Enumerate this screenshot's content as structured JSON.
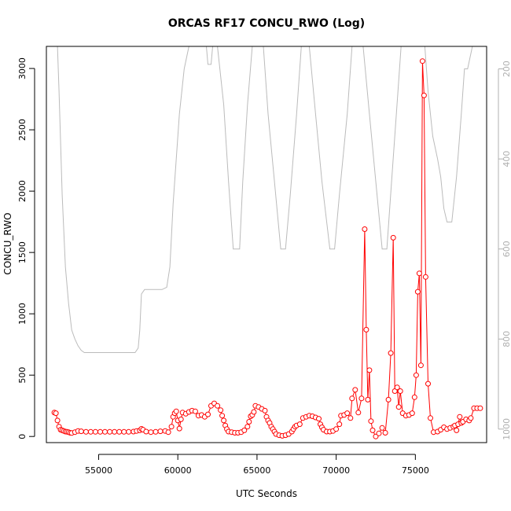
{
  "chart_data": {
    "type": "scatter",
    "title": "ORCAS RF17 CONCU_RWO (Log)",
    "xlabel": "UTC Seconds",
    "ylabel": "CONCU_RWO",
    "xlim": [
      51700,
      79500
    ],
    "ylim": [
      -50,
      3180
    ],
    "x_ticks": [
      55000,
      60000,
      65000,
      70000,
      75000
    ],
    "y_ticks": [
      0,
      500,
      1000,
      1500,
      2000,
      2500,
      3000
    ],
    "right_axis": {
      "ticks": [
        200,
        400,
        600,
        800,
        1000
      ],
      "range": [
        150,
        1030
      ],
      "inverted": true,
      "color": "#b0b0b0"
    },
    "series": [
      {
        "color": "#ff0000",
        "marker": "circle",
        "line": true,
        "points": [
          [
            52200,
            195
          ],
          [
            52300,
            190
          ],
          [
            52400,
            130
          ],
          [
            52500,
            80
          ],
          [
            52600,
            55
          ],
          [
            52700,
            50
          ],
          [
            52800,
            45
          ],
          [
            52900,
            40
          ],
          [
            53000,
            38
          ],
          [
            53100,
            35
          ],
          [
            53200,
            30
          ],
          [
            53300,
            28
          ],
          [
            53500,
            35
          ],
          [
            53700,
            45
          ],
          [
            53900,
            42
          ],
          [
            54200,
            38
          ],
          [
            54500,
            38
          ],
          [
            54800,
            38
          ],
          [
            55100,
            38
          ],
          [
            55400,
            38
          ],
          [
            55700,
            38
          ],
          [
            56000,
            38
          ],
          [
            56300,
            38
          ],
          [
            56600,
            38
          ],
          [
            56900,
            38
          ],
          [
            57200,
            40
          ],
          [
            57400,
            45
          ],
          [
            57600,
            50
          ],
          [
            57700,
            62
          ],
          [
            57800,
            55
          ],
          [
            58000,
            40
          ],
          [
            58300,
            35
          ],
          [
            58600,
            38
          ],
          [
            58900,
            42
          ],
          [
            59200,
            45
          ],
          [
            59400,
            35
          ],
          [
            59600,
            80
          ],
          [
            59700,
            160
          ],
          [
            59800,
            190
          ],
          [
            59900,
            205
          ],
          [
            60000,
            130
          ],
          [
            60100,
            65
          ],
          [
            60200,
            140
          ],
          [
            60300,
            195
          ],
          [
            60500,
            185
          ],
          [
            60700,
            200
          ],
          [
            60900,
            210
          ],
          [
            61100,
            205
          ],
          [
            61300,
            170
          ],
          [
            61500,
            175
          ],
          [
            61700,
            160
          ],
          [
            61900,
            180
          ],
          [
            62100,
            250
          ],
          [
            62300,
            270
          ],
          [
            62500,
            250
          ],
          [
            62700,
            215
          ],
          [
            62800,
            170
          ],
          [
            62900,
            130
          ],
          [
            63000,
            90
          ],
          [
            63100,
            60
          ],
          [
            63200,
            40
          ],
          [
            63400,
            35
          ],
          [
            63600,
            30
          ],
          [
            63800,
            30
          ],
          [
            64000,
            35
          ],
          [
            64200,
            50
          ],
          [
            64400,
            80
          ],
          [
            64500,
            120
          ],
          [
            64600,
            165
          ],
          [
            64700,
            175
          ],
          [
            64800,
            200
          ],
          [
            64900,
            250
          ],
          [
            65100,
            240
          ],
          [
            65300,
            225
          ],
          [
            65500,
            210
          ],
          [
            65600,
            160
          ],
          [
            65700,
            130
          ],
          [
            65800,
            110
          ],
          [
            65900,
            80
          ],
          [
            66000,
            60
          ],
          [
            66100,
            40
          ],
          [
            66200,
            20
          ],
          [
            66400,
            10
          ],
          [
            66600,
            5
          ],
          [
            66800,
            10
          ],
          [
            67000,
            20
          ],
          [
            67200,
            40
          ],
          [
            67300,
            60
          ],
          [
            67400,
            80
          ],
          [
            67500,
            90
          ],
          [
            67700,
            100
          ],
          [
            67900,
            150
          ],
          [
            68100,
            160
          ],
          [
            68300,
            170
          ],
          [
            68500,
            165
          ],
          [
            68700,
            155
          ],
          [
            68900,
            145
          ],
          [
            69000,
            100
          ],
          [
            69100,
            75
          ],
          [
            69200,
            55
          ],
          [
            69400,
            40
          ],
          [
            69600,
            40
          ],
          [
            69800,
            45
          ],
          [
            70000,
            60
          ],
          [
            70200,
            100
          ],
          [
            70300,
            170
          ],
          [
            70500,
            175
          ],
          [
            70700,
            190
          ],
          [
            70900,
            150
          ],
          [
            71000,
            310
          ],
          [
            71200,
            380
          ],
          [
            71400,
            195
          ],
          [
            71600,
            310
          ],
          [
            71800,
            1690
          ],
          [
            71900,
            870
          ],
          [
            72000,
            300
          ],
          [
            72100,
            540
          ],
          [
            72200,
            125
          ],
          [
            72300,
            50
          ],
          [
            72500,
            0
          ],
          [
            72700,
            25
          ],
          [
            72900,
            70
          ],
          [
            73100,
            30
          ],
          [
            73300,
            300
          ],
          [
            73450,
            680
          ],
          [
            73600,
            1620
          ],
          [
            73700,
            370
          ],
          [
            73850,
            400
          ],
          [
            73950,
            240
          ],
          [
            74050,
            370
          ],
          [
            74200,
            190
          ],
          [
            74400,
            170
          ],
          [
            74600,
            175
          ],
          [
            74800,
            190
          ],
          [
            74950,
            320
          ],
          [
            75050,
            500
          ],
          [
            75150,
            1180
          ],
          [
            75250,
            1330
          ],
          [
            75350,
            580
          ],
          [
            75450,
            3060
          ],
          [
            75550,
            2780
          ],
          [
            75650,
            1300
          ],
          [
            75800,
            430
          ],
          [
            75950,
            150
          ],
          [
            76150,
            35
          ],
          [
            76400,
            40
          ],
          [
            76600,
            55
          ],
          [
            76800,
            75
          ],
          [
            77000,
            60
          ],
          [
            77200,
            70
          ],
          [
            77400,
            80
          ],
          [
            77500,
            90
          ],
          [
            77600,
            50
          ],
          [
            77700,
            100
          ],
          [
            77800,
            160
          ],
          [
            77900,
            110
          ],
          [
            78000,
            120
          ],
          [
            78200,
            140
          ],
          [
            78400,
            130
          ],
          [
            78500,
            150
          ],
          [
            78700,
            230
          ],
          [
            78900,
            230
          ],
          [
            79100,
            230
          ]
        ]
      },
      {
        "color": "#bbbbbb",
        "axis": "right",
        "marker": "none",
        "line": true,
        "points": [
          [
            52400,
            150
          ],
          [
            52500,
            250
          ],
          [
            52700,
            480
          ],
          [
            52900,
            640
          ],
          [
            53100,
            720
          ],
          [
            53300,
            780
          ],
          [
            53500,
            800
          ],
          [
            53700,
            815
          ],
          [
            53900,
            825
          ],
          [
            54100,
            830
          ],
          [
            54500,
            830
          ],
          [
            55000,
            830
          ],
          [
            55500,
            830
          ],
          [
            56000,
            830
          ],
          [
            56500,
            830
          ],
          [
            57000,
            830
          ],
          [
            57300,
            830
          ],
          [
            57500,
            820
          ],
          [
            57600,
            780
          ],
          [
            57700,
            700
          ],
          [
            57900,
            690
          ],
          [
            58200,
            690
          ],
          [
            58500,
            690
          ],
          [
            58800,
            690
          ],
          [
            59000,
            690
          ],
          [
            59300,
            685
          ],
          [
            59500,
            640
          ],
          [
            59700,
            500
          ],
          [
            59900,
            400
          ],
          [
            60100,
            300
          ],
          [
            60400,
            200
          ],
          [
            60700,
            150
          ],
          [
            61800,
            150
          ],
          [
            61900,
            190
          ],
          [
            62100,
            190
          ],
          [
            62200,
            150
          ],
          [
            62500,
            150
          ],
          [
            62900,
            280
          ],
          [
            63200,
            450
          ],
          [
            63500,
            600
          ],
          [
            63600,
            600
          ],
          [
            63900,
            600
          ],
          [
            64100,
            450
          ],
          [
            64400,
            280
          ],
          [
            64700,
            150
          ],
          [
            65400,
            150
          ],
          [
            65700,
            300
          ],
          [
            66100,
            450
          ],
          [
            66500,
            600
          ],
          [
            66800,
            600
          ],
          [
            67100,
            480
          ],
          [
            67500,
            300
          ],
          [
            67800,
            150
          ],
          [
            68300,
            150
          ],
          [
            68700,
            300
          ],
          [
            69100,
            450
          ],
          [
            69600,
            600
          ],
          [
            69900,
            600
          ],
          [
            70200,
            480
          ],
          [
            70700,
            300
          ],
          [
            71000,
            150
          ],
          [
            71700,
            150
          ],
          [
            72100,
            300
          ],
          [
            72500,
            450
          ],
          [
            72900,
            600
          ],
          [
            73200,
            600
          ],
          [
            73500,
            450
          ],
          [
            73900,
            250
          ],
          [
            74100,
            150
          ],
          [
            75600,
            150
          ],
          [
            75800,
            250
          ],
          [
            76100,
            350
          ],
          [
            76400,
            400
          ],
          [
            76600,
            440
          ],
          [
            76800,
            510
          ],
          [
            77000,
            540
          ],
          [
            77300,
            540
          ],
          [
            77600,
            440
          ],
          [
            77900,
            300
          ],
          [
            78100,
            200
          ],
          [
            78300,
            200
          ],
          [
            78600,
            150
          ]
        ]
      }
    ]
  }
}
